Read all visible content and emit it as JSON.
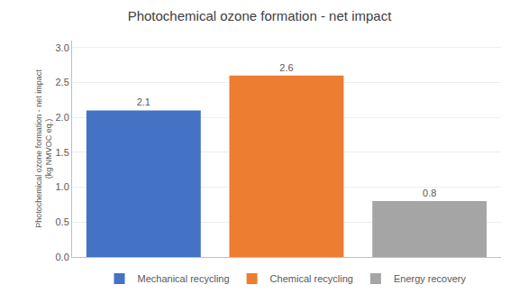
{
  "chart_data": {
    "type": "bar",
    "title": "Photochemical ozone formation - net impact",
    "ylabel": "Photochemical ozone formation - net impact\n(kg NMVOC eq.)",
    "categories": [
      "Mechanical recycling",
      "Chemical recycling",
      "Energy recovery"
    ],
    "values": [
      2.1,
      2.6,
      0.8
    ],
    "colors": [
      "#4472C4",
      "#ED7D31",
      "#A5A5A5"
    ],
    "ylim": [
      0,
      3.1
    ],
    "yticks": [
      {
        "value": 0,
        "label": "0.0"
      },
      0.5,
      {
        "value": 1,
        "label": "1.0"
      },
      1.5,
      {
        "value": 2,
        "label": "2.0"
      },
      2.5,
      {
        "value": 3,
        "label": "3.0"
      }
    ],
    "grid": true,
    "legend": "bottom",
    "data_labels": true,
    "tick_labels": "y"
  }
}
